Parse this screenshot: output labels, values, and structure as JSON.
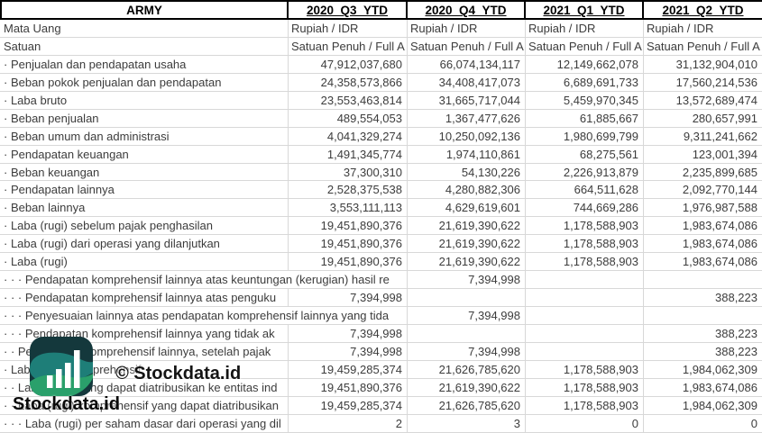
{
  "sheet": {
    "title": "ARMY",
    "columns": [
      "2020_Q3_YTD",
      "2020_Q4_YTD",
      "2021_Q1_YTD",
      "2021_Q2_YTD"
    ],
    "meta_rows": [
      {
        "label": "Mata Uang",
        "values": [
          "Rupiah / IDR",
          "Rupiah / IDR",
          "Rupiah / IDR",
          "Rupiah / IDR"
        ]
      },
      {
        "label": "Satuan",
        "values": [
          "Satuan Penuh / Full A",
          "Satuan Penuh / Full A",
          "Satuan Penuh / Full A",
          "Satuan Penuh / Full A"
        ]
      }
    ],
    "rows": [
      {
        "label": "· Penjualan dan pendapatan usaha",
        "label_span": 1,
        "values": [
          "47,912,037,680",
          "66,074,134,117",
          "12,149,662,078",
          "31,132,904,010"
        ]
      },
      {
        "label": "· Beban pokok penjualan dan pendapatan",
        "label_span": 1,
        "values": [
          "24,358,573,866",
          "34,408,417,073",
          "6,689,691,733",
          "17,560,214,536"
        ]
      },
      {
        "label": "· Laba bruto",
        "label_span": 1,
        "values": [
          "23,553,463,814",
          "31,665,717,044",
          "5,459,970,345",
          "13,572,689,474"
        ]
      },
      {
        "label": "· Beban penjualan",
        "label_span": 1,
        "values": [
          "489,554,053",
          "1,367,477,626",
          "61,885,667",
          "280,657,991"
        ]
      },
      {
        "label": "· Beban umum dan administrasi",
        "label_span": 1,
        "values": [
          "4,041,329,274",
          "10,250,092,136",
          "1,980,699,799",
          "9,311,241,662"
        ]
      },
      {
        "label": "· Pendapatan keuangan",
        "label_span": 1,
        "values": [
          "1,491,345,774",
          "1,974,110,861",
          "68,275,561",
          "123,001,394"
        ]
      },
      {
        "label": "· Beban keuangan",
        "label_span": 1,
        "values": [
          "37,300,310",
          "54,130,226",
          "2,226,913,879",
          "2,235,899,685"
        ]
      },
      {
        "label": "· Pendapatan lainnya",
        "label_span": 1,
        "values": [
          "2,528,375,538",
          "4,280,882,306",
          "664,511,628",
          "2,092,770,144"
        ]
      },
      {
        "label": "· Beban lainnya",
        "label_span": 1,
        "values": [
          "3,553,111,113",
          "4,629,619,601",
          "744,669,286",
          "1,976,987,588"
        ]
      },
      {
        "label": "· Laba (rugi) sebelum pajak penghasilan",
        "label_span": 1,
        "values": [
          "19,451,890,376",
          "21,619,390,622",
          "1,178,588,903",
          "1,983,674,086"
        ]
      },
      {
        "label": "· Laba (rugi) dari operasi yang dilanjutkan",
        "label_span": 1,
        "values": [
          "19,451,890,376",
          "21,619,390,622",
          "1,178,588,903",
          "1,983,674,086"
        ]
      },
      {
        "label": "· Laba (rugi)",
        "label_span": 1,
        "values": [
          "19,451,890,376",
          "21,619,390,622",
          "1,178,588,903",
          "1,983,674,086"
        ]
      },
      {
        "label": "· · · Pendapatan komprehensif lainnya atas keuntungan (kerugian) hasil re",
        "label_span": 2,
        "values": [
          "7,394,998",
          "",
          ""
        ]
      },
      {
        "label": "· · · Pendapatan komprehensif lainnya atas penguku",
        "label_span": 1,
        "values": [
          "7,394,998",
          "",
          "",
          "388,223"
        ]
      },
      {
        "label": "· · · Penyesuaian lainnya atas pendapatan komprehensif lainnya yang tida",
        "label_span": 2,
        "values": [
          "7,394,998",
          "",
          ""
        ]
      },
      {
        "label": "· · · Pendapatan komprehensif lainnya yang tidak ak",
        "label_span": 1,
        "values": [
          "7,394,998",
          "",
          "",
          "388,223"
        ]
      },
      {
        "label": "· · Pendapatan komprehensif lainnya, setelah pajak",
        "label_span": 1,
        "values": [
          "7,394,998",
          "7,394,998",
          "",
          "388,223"
        ]
      },
      {
        "label": "· Laba (rugi) komprehensif",
        "label_span": 1,
        "values": [
          "19,459,285,374",
          "21,626,785,620",
          "1,178,588,903",
          "1,984,062,309"
        ]
      },
      {
        "label": "· · Laba (rugi) yang dapat diatribusikan ke entitas ind",
        "label_span": 1,
        "values": [
          "19,451,890,376",
          "21,619,390,622",
          "1,178,588,903",
          "1,983,674,086"
        ]
      },
      {
        "label": "· · Laba (rugi) komprehensif yang dapat diatribusikan",
        "label_span": 1,
        "values": [
          "19,459,285,374",
          "21,626,785,620",
          "1,178,588,903",
          "1,984,062,309"
        ]
      },
      {
        "label": "· · · Laba (rugi) per saham dasar dari operasi yang dil",
        "label_span": 1,
        "values": [
          "2",
          "3",
          "0",
          "0"
        ]
      }
    ]
  },
  "watermark": {
    "text": "© Stockdata.id"
  },
  "logo": {
    "wordmark": "Stockdata.id",
    "icon": "stockdata-logo-icon",
    "colors": {
      "icon_bg": "#14383c",
      "leaf_teal": "#1e7e78",
      "leaf_green": "#2aa06b",
      "bars": "#ffffff",
      "wordmark": "#0a0a0a"
    }
  }
}
